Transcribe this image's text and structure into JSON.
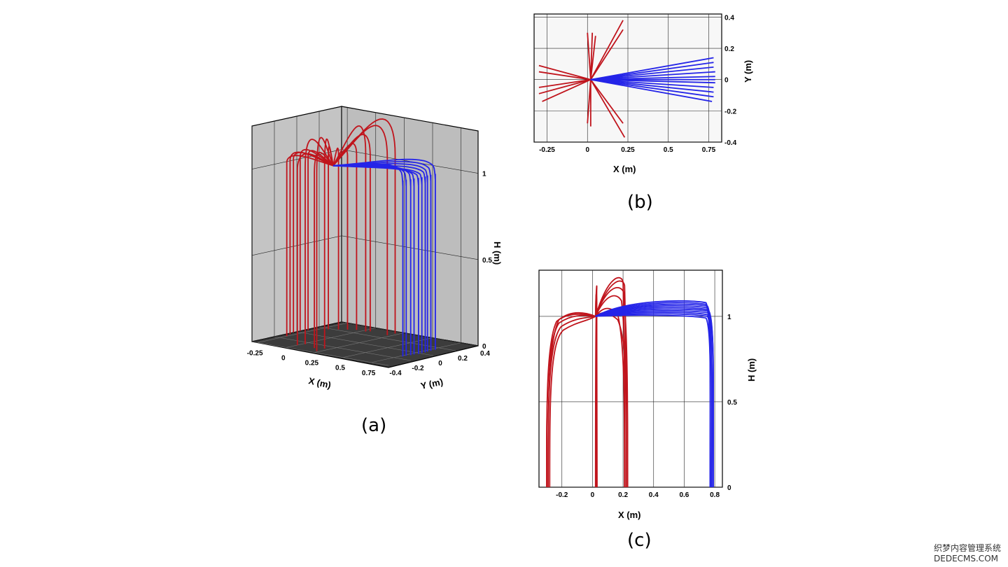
{
  "panels": {
    "a": {
      "label": "(a)"
    },
    "b": {
      "label": "(b)"
    },
    "c": {
      "label": "(c)"
    }
  },
  "colors": {
    "red": "#c0141c",
    "blue": "#2424e8",
    "wall": "#c8c8c8",
    "wall_dark": "#b4b4b4",
    "floor": "#3a3a3a"
  },
  "watermark": {
    "line1": "织梦内容管理系统",
    "line2": "DEDECMS.COM"
  },
  "chart_data": [
    {
      "id": "a",
      "type": "line",
      "subtype": "3d-trajectories",
      "xlabel": "X (m)",
      "ylabel": "Y (m)",
      "zlabel": "H (m)",
      "x_ticks": [
        "-0.25",
        "0",
        "0.25",
        "0.5",
        "0.75"
      ],
      "y_ticks": [
        "-0.4",
        "-0.2",
        "0",
        "0.2",
        "0.4"
      ],
      "z_ticks": [
        "0",
        "0.5",
        "1"
      ],
      "xlim": [
        -0.3,
        0.9
      ],
      "ylim": [
        -0.4,
        0.4
      ],
      "zlim": [
        0,
        1.25
      ],
      "grid": true,
      "origin": [
        0.02,
        0,
        1.0
      ],
      "series": [
        {
          "color": "red",
          "trajectories": [
            {
              "end": [
                -0.28,
                0.08
              ],
              "peak": 1.05
            },
            {
              "end": [
                -0.3,
                0.03
              ],
              "peak": 1.06
            },
            {
              "end": [
                -0.3,
                -0.03
              ],
              "peak": 1.05
            },
            {
              "end": [
                -0.28,
                -0.08
              ],
              "peak": 1.06
            },
            {
              "end": [
                -0.25,
                -0.14
              ],
              "peak": 1.05
            },
            {
              "end": [
                -0.2,
                0.18
              ],
              "peak": 1.07
            },
            {
              "end": [
                -0.15,
                0.22
              ],
              "peak": 1.06
            },
            {
              "end": [
                -0.1,
                0.25
              ],
              "peak": 1.05
            },
            {
              "end": [
                0.03,
                0.28
              ],
              "peak": 1.2
            },
            {
              "end": [
                0.02,
                -0.25
              ],
              "peak": 1.18
            },
            {
              "end": [
                0.05,
                0.3
              ],
              "peak": 1.15
            },
            {
              "end": [
                0.22,
                0.35
              ],
              "peak": 1.25
            },
            {
              "end": [
                0.22,
                0.28
              ],
              "peak": 1.22
            },
            {
              "end": [
                0.21,
                -0.27
              ],
              "peak": 1.2
            },
            {
              "end": [
                0.23,
                -0.36
              ],
              "peak": 1.22
            },
            {
              "end": [
                0.15,
                -0.3
              ],
              "peak": 1.12
            },
            {
              "end": [
                0.0,
                -0.3
              ],
              "peak": 1.1
            },
            {
              "end": [
                -0.05,
                0.28
              ],
              "peak": 1.09
            }
          ]
        },
        {
          "color": "blue",
          "trajectories": [
            {
              "end": [
                0.78,
                0.14
              ],
              "peak": 1.09
            },
            {
              "end": [
                0.78,
                0.1
              ],
              "peak": 1.08
            },
            {
              "end": [
                0.78,
                0.07
              ],
              "peak": 1.07
            },
            {
              "end": [
                0.79,
                0.04
              ],
              "peak": 1.06
            },
            {
              "end": [
                0.79,
                0.01
              ],
              "peak": 1.05
            },
            {
              "end": [
                0.79,
                -0.02
              ],
              "peak": 1.05
            },
            {
              "end": [
                0.78,
                -0.05
              ],
              "peak": 1.06
            },
            {
              "end": [
                0.78,
                -0.08
              ],
              "peak": 1.07
            },
            {
              "end": [
                0.77,
                -0.11
              ],
              "peak": 1.08
            },
            {
              "end": [
                0.77,
                -0.14
              ],
              "peak": 1.09
            }
          ]
        }
      ]
    },
    {
      "id": "b",
      "type": "line",
      "subtype": "top-view",
      "xlabel": "X (m)",
      "ylabel": "Y (m)",
      "x_ticks": [
        "-0.25",
        "0",
        "0.25",
        "0.5",
        "0.75"
      ],
      "y_ticks": [
        "-0.4",
        "-0.2",
        "0",
        "0.2",
        "0.4"
      ],
      "xlim": [
        -0.33,
        0.83
      ],
      "ylim": [
        -0.4,
        0.42
      ],
      "grid": true,
      "origin": [
        0.02,
        0
      ],
      "series": [
        {
          "color": "red",
          "ends": [
            [
              -0.3,
              0.09
            ],
            [
              -0.3,
              0.05
            ],
            [
              -0.3,
              -0.05
            ],
            [
              -0.3,
              -0.09
            ],
            [
              -0.28,
              -0.14
            ],
            [
              0.03,
              0.3
            ],
            [
              0.0,
              0.3
            ],
            [
              0.02,
              -0.3
            ],
            [
              0.0,
              -0.28
            ],
            [
              0.05,
              0.28
            ],
            [
              0.22,
              0.38
            ],
            [
              0.22,
              0.32
            ],
            [
              0.22,
              -0.28
            ],
            [
              0.23,
              -0.37
            ]
          ]
        },
        {
          "color": "blue",
          "ends": [
            [
              0.78,
              0.14
            ],
            [
              0.78,
              0.11
            ],
            [
              0.78,
              0.08
            ],
            [
              0.79,
              0.05
            ],
            [
              0.79,
              0.02
            ],
            [
              0.79,
              0.0
            ],
            [
              0.79,
              -0.02
            ],
            [
              0.78,
              -0.05
            ],
            [
              0.78,
              -0.08
            ],
            [
              0.78,
              -0.11
            ],
            [
              0.77,
              -0.14
            ]
          ]
        }
      ]
    },
    {
      "id": "c",
      "type": "line",
      "subtype": "side-view",
      "xlabel": "X (m)",
      "ylabel": "H (m)",
      "x_ticks": [
        "-0.2",
        "0",
        "0.2",
        "0.4",
        "0.6",
        "0.8"
      ],
      "y_ticks": [
        "0",
        "0.5",
        "1"
      ],
      "xlim": [
        -0.35,
        0.85
      ],
      "ylim": [
        0,
        1.27
      ],
      "grid": true,
      "origin": [
        0.02,
        1.0
      ],
      "series": [
        {
          "color": "red",
          "trajectories": [
            {
              "end": -0.29,
              "peak_x": -0.15,
              "peak": 1.03
            },
            {
              "end": -0.3,
              "peak_x": -0.17,
              "peak": 1.02
            },
            {
              "end": -0.3,
              "peak_x": -0.14,
              "peak": 1.01
            },
            {
              "end": -0.29,
              "peak_x": -0.12,
              "peak": 0.99
            },
            {
              "end": -0.28,
              "peak_x": -0.1,
              "peak": 0.97
            },
            {
              "end": 0.025,
              "peak_x": 0.03,
              "peak": 1.2
            },
            {
              "end": 0.03,
              "peak_x": 0.025,
              "peak": 1.15
            },
            {
              "end": 0.02,
              "peak_x": 0.03,
              "peak": 1.1
            },
            {
              "end": 0.21,
              "peak_x": 0.19,
              "peak": 1.25
            },
            {
              "end": 0.22,
              "peak_x": 0.2,
              "peak": 1.23
            },
            {
              "end": 0.23,
              "peak_x": 0.18,
              "peak": 1.19
            },
            {
              "end": 0.22,
              "peak_x": 0.16,
              "peak": 1.14
            },
            {
              "end": 0.21,
              "peak_x": 0.12,
              "peak": 1.06
            },
            {
              "end": 0.23,
              "peak_x": 0.1,
              "peak": 1.03
            }
          ]
        },
        {
          "color": "blue",
          "trajectories": [
            {
              "end": 0.77,
              "peak": 1.1
            },
            {
              "end": 0.77,
              "peak": 1.09
            },
            {
              "end": 0.78,
              "peak": 1.08
            },
            {
              "end": 0.78,
              "peak": 1.07
            },
            {
              "end": 0.78,
              "peak": 1.06
            },
            {
              "end": 0.79,
              "peak": 1.05
            },
            {
              "end": 0.79,
              "peak": 1.04
            },
            {
              "end": 0.78,
              "peak": 1.03
            },
            {
              "end": 0.78,
              "peak": 1.02
            },
            {
              "end": 0.77,
              "peak": 1.01
            }
          ]
        }
      ]
    }
  ]
}
